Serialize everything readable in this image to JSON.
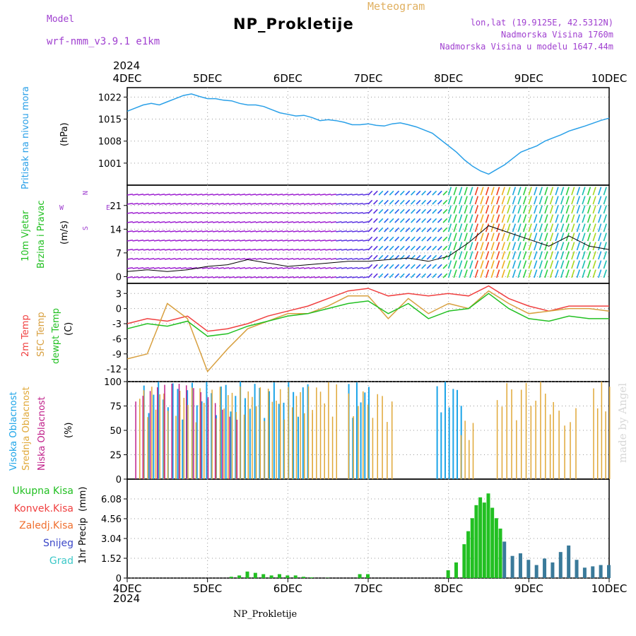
{
  "header": {
    "model_label": "Model",
    "model_name": "wrf-nmm_v3.9.1 e1km",
    "title": "NP_Prokletije",
    "subtitle": "Meteogram",
    "lonlat": "lon,lat (19.9125E, 42.5312N)",
    "elevation": "Nadmorska Visina 1760m",
    "model_elevation": "Nadmorska Visina u modelu 1647.44m",
    "watermark": "made by Angel",
    "footer": "NP_Prokletije"
  },
  "colors": {
    "pressure": "#2aa0e8",
    "wind_label": "#1fbf1f",
    "temp2m": "#f04040",
    "sfc": "#d8a040",
    "dewpt": "#22c022",
    "high_cloud": "#1ca4e8",
    "mid_cloud": "#e0a838",
    "low_cloud": "#c0208a",
    "total_precip": "#22c022",
    "convective": "#f04040",
    "frozen": "#f07030",
    "snow": "#3c48c8",
    "hail": "#3cc8c8"
  },
  "chart_data": [
    {
      "type": "line",
      "panel": "pressure",
      "ylabel_main": "Pritisak na nivou mora",
      "ylabel_unit": "(hPa)",
      "yticks": [
        1001,
        1008,
        1015,
        1022
      ],
      "ylim": [
        994,
        1025
      ],
      "x": [
        0,
        0.1,
        0.2,
        0.3,
        0.4,
        0.5,
        0.6,
        0.7,
        0.8,
        0.9,
        1.0,
        1.1,
        1.2,
        1.3,
        1.4,
        1.5,
        1.6,
        1.7,
        1.8,
        1.9,
        2.0,
        2.1,
        2.2,
        2.3,
        2.4,
        2.5,
        2.6,
        2.7,
        2.8,
        2.9,
        3.0,
        3.1,
        3.2,
        3.3,
        3.4,
        3.5,
        3.6,
        3.7,
        3.8,
        3.9,
        4.0,
        4.1,
        4.2,
        4.3,
        4.4,
        4.5,
        4.6,
        4.7,
        4.8,
        4.9,
        5.0,
        5.1,
        5.2,
        5.3,
        5.4,
        5.5,
        5.6,
        5.7,
        5.8,
        5.9,
        6.0
      ],
      "values": [
        1017.5,
        1018.5,
        1019.5,
        1020,
        1019.5,
        1020.5,
        1021.5,
        1022.5,
        1023,
        1022.2,
        1021.5,
        1021.5,
        1021,
        1020.8,
        1020,
        1019.5,
        1019.5,
        1019,
        1018,
        1017,
        1016.5,
        1016,
        1016.2,
        1015.5,
        1014.5,
        1014.8,
        1014.5,
        1014,
        1013.2,
        1013.2,
        1013.5,
        1013,
        1012.8,
        1013.5,
        1013.8,
        1013.2,
        1012.5,
        1011.5,
        1010.5,
        1008.5,
        1006.5,
        1004.5,
        1002,
        1000,
        998.5,
        997.5,
        999,
        1000.5,
        1002.5,
        1004.5,
        1005.5,
        1006.5,
        1008,
        1009,
        1010,
        1011.2,
        1012,
        1012.8,
        1013.7,
        1014.6,
        1015.3
      ]
    },
    {
      "type": "line",
      "panel": "wind",
      "ylabel_main": "10m Vjetar",
      "ylabel_sub": "Brzina i Pravac",
      "ylabel_unit": "(m/s)",
      "direction_key": "N",
      "direction_key_left": "W",
      "direction_key_right": "E",
      "direction_key_bottom": "S",
      "yticks": [
        0,
        7,
        14,
        21
      ],
      "ylim": [
        -2,
        27
      ],
      "x": [
        0,
        0.25,
        0.5,
        0.75,
        1.0,
        1.25,
        1.5,
        1.75,
        2.0,
        2.25,
        2.5,
        2.75,
        3.0,
        3.25,
        3.5,
        3.75,
        4.0,
        4.25,
        4.5,
        4.75,
        5.0,
        5.25,
        5.5,
        5.75,
        6.0
      ],
      "values": [
        1.5,
        2,
        1.5,
        2,
        3,
        3.5,
        5,
        4,
        3,
        3.5,
        4,
        4.5,
        4.5,
        5,
        5.5,
        4.5,
        6,
        10,
        15,
        13,
        11,
        9,
        12,
        9,
        8
      ]
    },
    {
      "type": "line",
      "panel": "temperature",
      "ylabel_lines": [
        "2m Temp",
        "SFC Temp",
        "dewpt Temp"
      ],
      "ylabel_unit": "(C)",
      "yticks": [
        3,
        0,
        -3,
        -6,
        -9,
        -12
      ],
      "ylim": [
        -14.5,
        5
      ],
      "x": [
        0,
        0.25,
        0.5,
        0.75,
        1.0,
        1.25,
        1.5,
        1.75,
        2.0,
        2.25,
        2.5,
        2.75,
        3.0,
        3.25,
        3.5,
        3.75,
        4.0,
        4.25,
        4.5,
        4.75,
        5.0,
        5.25,
        5.5,
        5.75,
        6.0
      ],
      "series": [
        {
          "name": "2m Temp",
          "values": [
            -3,
            -2,
            -2.5,
            -1.5,
            -4.5,
            -4,
            -3,
            -1.5,
            -0.5,
            0.5,
            2,
            3.5,
            4,
            2.5,
            3,
            2.5,
            3,
            2.5,
            4.5,
            2,
            0.5,
            -0.5,
            0.5,
            0.5,
            0.5
          ]
        },
        {
          "name": "SFC Temp",
          "values": [
            -10,
            -9,
            1,
            -2,
            -12.5,
            -8,
            -4,
            -2.5,
            -1,
            -1,
            0.5,
            2.5,
            2.5,
            -2,
            2,
            -1,
            1,
            0,
            3.5,
            1,
            -1,
            -0.5,
            0,
            0,
            -0.5
          ]
        },
        {
          "name": "dewpt Temp",
          "values": [
            -4,
            -3,
            -3.5,
            -2.5,
            -5.5,
            -5,
            -3.5,
            -2.5,
            -1.5,
            -1,
            0,
            1,
            1.5,
            -1,
            1,
            -2,
            -0.5,
            0,
            3,
            0,
            -2,
            -2.5,
            -1.5,
            -2,
            -2
          ]
        }
      ]
    },
    {
      "type": "bar",
      "panel": "cloud",
      "ylabel_lines": [
        "Visoka Oblacnost",
        "Srednja Oblacnost",
        "Niska Oblacnost"
      ],
      "ylabel_unit": "(%)",
      "yticks": [
        0,
        25,
        50,
        75,
        100
      ],
      "ylim": [
        0,
        100
      ]
    },
    {
      "type": "bar",
      "panel": "precip",
      "ylabel_main": "1hr Precip",
      "ylabel_unit": "(mm)",
      "legend": [
        "Ukupna Kisa",
        "Konvek.Kisa",
        "Zaledj.Kisa",
        "Snijeg",
        "Grad"
      ],
      "yticks": [
        0,
        1.52,
        3.04,
        4.56,
        6.08
      ],
      "ylim": [
        0,
        7.6
      ],
      "x": [
        1.3,
        1.4,
        1.5,
        1.6,
        1.7,
        1.8,
        1.9,
        2.0,
        2.1,
        2.2,
        2.3,
        2.5,
        2.9,
        3.0,
        4.0,
        4.1,
        4.2,
        4.25,
        4.3,
        4.35,
        4.4,
        4.45,
        4.5,
        4.55,
        4.6,
        4.65,
        4.7,
        4.8,
        4.9,
        5.0,
        5.1,
        5.2,
        5.3,
        5.4,
        5.5,
        5.6,
        5.7,
        5.8,
        5.9,
        6.0
      ],
      "values": [
        0.1,
        0.2,
        0.5,
        0.4,
        0.3,
        0.2,
        0.3,
        0.2,
        0.2,
        0.1,
        0.05,
        0.02,
        0.3,
        0.3,
        0.6,
        1.2,
        2.6,
        3.6,
        4.6,
        5.6,
        6.2,
        5.8,
        6.5,
        5.4,
        4.6,
        3.8,
        2.8,
        1.7,
        1.9,
        1.4,
        1.0,
        1.5,
        1.2,
        2.0,
        2.5,
        1.4,
        0.8,
        0.9,
        1.0,
        1.0
      ]
    }
  ],
  "time_axis": {
    "labels": [
      "4DEC",
      "5DEC",
      "6DEC",
      "7DEC",
      "8DEC",
      "9DEC",
      "10DEC"
    ],
    "year": "2024"
  }
}
